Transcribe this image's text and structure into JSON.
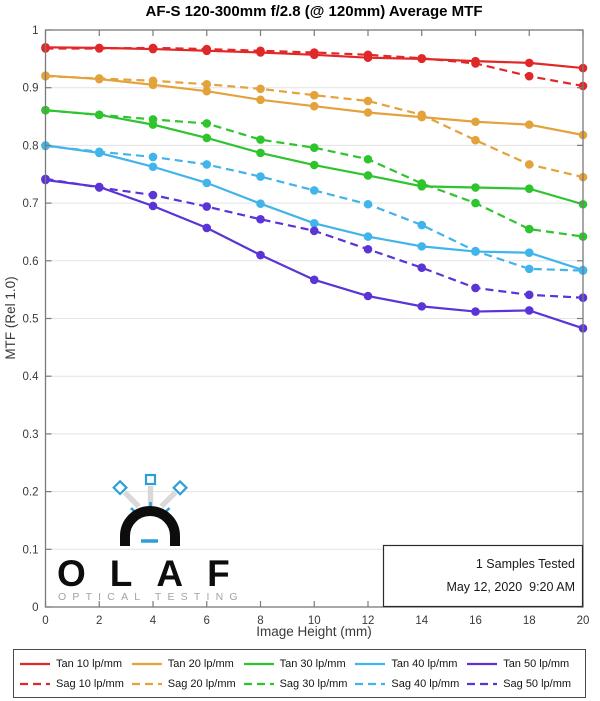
{
  "title": "AF-S 120-300mm f/2.8 (@ 120mm) Average MTF",
  "annotation": {
    "line1": "1 Samples Tested",
    "line2": "May 12, 2020  9:20 AM"
  },
  "logo": {
    "word": "OLAF",
    "subtitle": "OPTICAL TESTING",
    "accent_color": "#2e9fd6",
    "text_color": "#0d0d0d",
    "subtitle_color": "#a3a3a3"
  },
  "chart_data": {
    "type": "line",
    "title": "AF-S 120-300mm f/2.8 (@ 120mm) Average MTF",
    "xlabel": "Image Height (mm)",
    "ylabel": "MTF (Rel 1.0)",
    "xlim": [
      0,
      20
    ],
    "ylim": [
      0,
      1
    ],
    "xticks": [
      0,
      2,
      4,
      6,
      8,
      10,
      12,
      14,
      16,
      18,
      20
    ],
    "yticks": [
      0,
      0.1,
      0.2,
      0.3,
      0.4,
      0.5,
      0.6,
      0.7,
      0.8,
      0.9,
      1
    ],
    "grid": "horizontal",
    "legend_position": "bottom",
    "marker": "circle",
    "x": [
      0,
      2,
      4,
      6,
      8,
      10,
      12,
      14,
      16,
      18,
      20
    ],
    "series": [
      {
        "name": "Tan 10 lp/mm",
        "color": "#e12828",
        "style": "solid",
        "values": [
          0.97,
          0.969,
          0.967,
          0.964,
          0.961,
          0.957,
          0.952,
          0.95,
          0.946,
          0.943,
          0.934
        ]
      },
      {
        "name": "Sag 10 lp/mm",
        "color": "#e12828",
        "style": "dashed",
        "values": [
          0.968,
          0.968,
          0.969,
          0.967,
          0.964,
          0.961,
          0.957,
          0.951,
          0.942,
          0.92,
          0.903
        ]
      },
      {
        "name": "Tan 20 lp/mm",
        "color": "#e3a23c",
        "style": "solid",
        "values": [
          0.921,
          0.915,
          0.905,
          0.894,
          0.879,
          0.868,
          0.857,
          0.849,
          0.841,
          0.836,
          0.818
        ]
      },
      {
        "name": "Sag 20 lp/mm",
        "color": "#e3a23c",
        "style": "dashed",
        "values": [
          0.92,
          0.916,
          0.912,
          0.906,
          0.898,
          0.887,
          0.877,
          0.853,
          0.809,
          0.767,
          0.745
        ]
      },
      {
        "name": "Tan 30 lp/mm",
        "color": "#2ec42e",
        "style": "solid",
        "values": [
          0.861,
          0.853,
          0.836,
          0.813,
          0.787,
          0.766,
          0.748,
          0.729,
          0.727,
          0.725,
          0.698
        ]
      },
      {
        "name": "Sag 30 lp/mm",
        "color": "#2ec42e",
        "style": "dashed",
        "values": [
          0.861,
          0.853,
          0.845,
          0.838,
          0.81,
          0.796,
          0.776,
          0.734,
          0.7,
          0.655,
          0.642
        ]
      },
      {
        "name": "Tan 40 lp/mm",
        "color": "#41b4e9",
        "style": "solid",
        "values": [
          0.8,
          0.787,
          0.763,
          0.735,
          0.699,
          0.665,
          0.642,
          0.625,
          0.616,
          0.614,
          0.584
        ]
      },
      {
        "name": "Sag 40 lp/mm",
        "color": "#41b4e9",
        "style": "dashed",
        "values": [
          0.799,
          0.789,
          0.78,
          0.767,
          0.746,
          0.722,
          0.698,
          0.662,
          0.617,
          0.586,
          0.583
        ]
      },
      {
        "name": "Tan 50 lp/mm",
        "color": "#5a34d6",
        "style": "solid",
        "values": [
          0.74,
          0.728,
          0.695,
          0.657,
          0.61,
          0.567,
          0.539,
          0.521,
          0.512,
          0.514,
          0.483
        ]
      },
      {
        "name": "Sag 50 lp/mm",
        "color": "#5a34d6",
        "style": "dashed",
        "values": [
          0.742,
          0.727,
          0.714,
          0.694,
          0.672,
          0.652,
          0.62,
          0.588,
          0.553,
          0.541,
          0.536
        ]
      }
    ]
  }
}
